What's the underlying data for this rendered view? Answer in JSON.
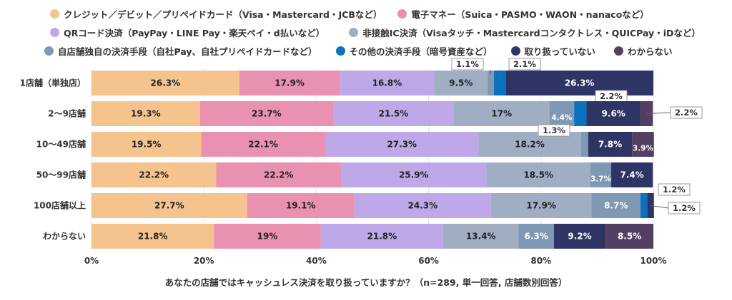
{
  "chart_data": {
    "type": "bar",
    "orientation": "horizontal",
    "stacked": true,
    "title": "あなたの店舗ではキャッシュレス決済を取り扱っていますか？（n=289, 単一回答, 店舗数別回答）",
    "categories": [
      "1店舗（単独店）",
      "2〜9店舗",
      "10〜49店舗",
      "50〜99店舗",
      "100店舗以上",
      "わからない"
    ],
    "xlim": [
      0,
      100
    ],
    "xticks": [
      "0%",
      "20%",
      "40%",
      "60%",
      "80%",
      "100%"
    ],
    "grid": true,
    "legend_position": "top",
    "series": [
      {
        "name": "クレジット／デビット／プリペイドカード（Visa・Mastercard・JCBなど）",
        "color": "#F5C48E",
        "values": [
          26.3,
          19.3,
          19.5,
          22.2,
          27.7,
          21.8
        ]
      },
      {
        "name": "電子マネー（Suica・PASMO・WAON・nanacoなど）",
        "color": "#E991B0",
        "values": [
          17.9,
          23.7,
          22.1,
          22.2,
          19.1,
          19
        ]
      },
      {
        "name": "QRコード決済（PayPay・LINE Pay・楽天ペイ・d払いなど）",
        "color": "#BEA8E8",
        "values": [
          16.8,
          21.5,
          27.3,
          25.9,
          24.3,
          21.8
        ]
      },
      {
        "name": "非接触IC決済（Visaタッチ・Mastercardコンタクトレス・QUICPay・iDなど）",
        "color": "#A0AEC4",
        "values": [
          9.5,
          17,
          18.2,
          18.5,
          17.9,
          13.4
        ]
      },
      {
        "name": "自店舗独自の決済手段（自社Pay、自社プリペイドカードなど）",
        "color": "#7F98B3",
        "values": [
          1.1,
          4.4,
          1.3,
          3.7,
          8.7,
          6.3
        ]
      },
      {
        "name": "その他の決済手段（暗号資産など）",
        "color": "#0B72C0",
        "values": [
          2.1,
          2.2,
          0,
          0,
          1.2,
          0
        ]
      },
      {
        "name": "取り扱っていない",
        "color": "#2E3464",
        "values": [
          26.3,
          9.6,
          7.8,
          7.4,
          1.2,
          9.2
        ]
      },
      {
        "name": "わからない",
        "color": "#533F62",
        "values": [
          0,
          2.2,
          3.9,
          0,
          0,
          8.5
        ]
      }
    ]
  }
}
